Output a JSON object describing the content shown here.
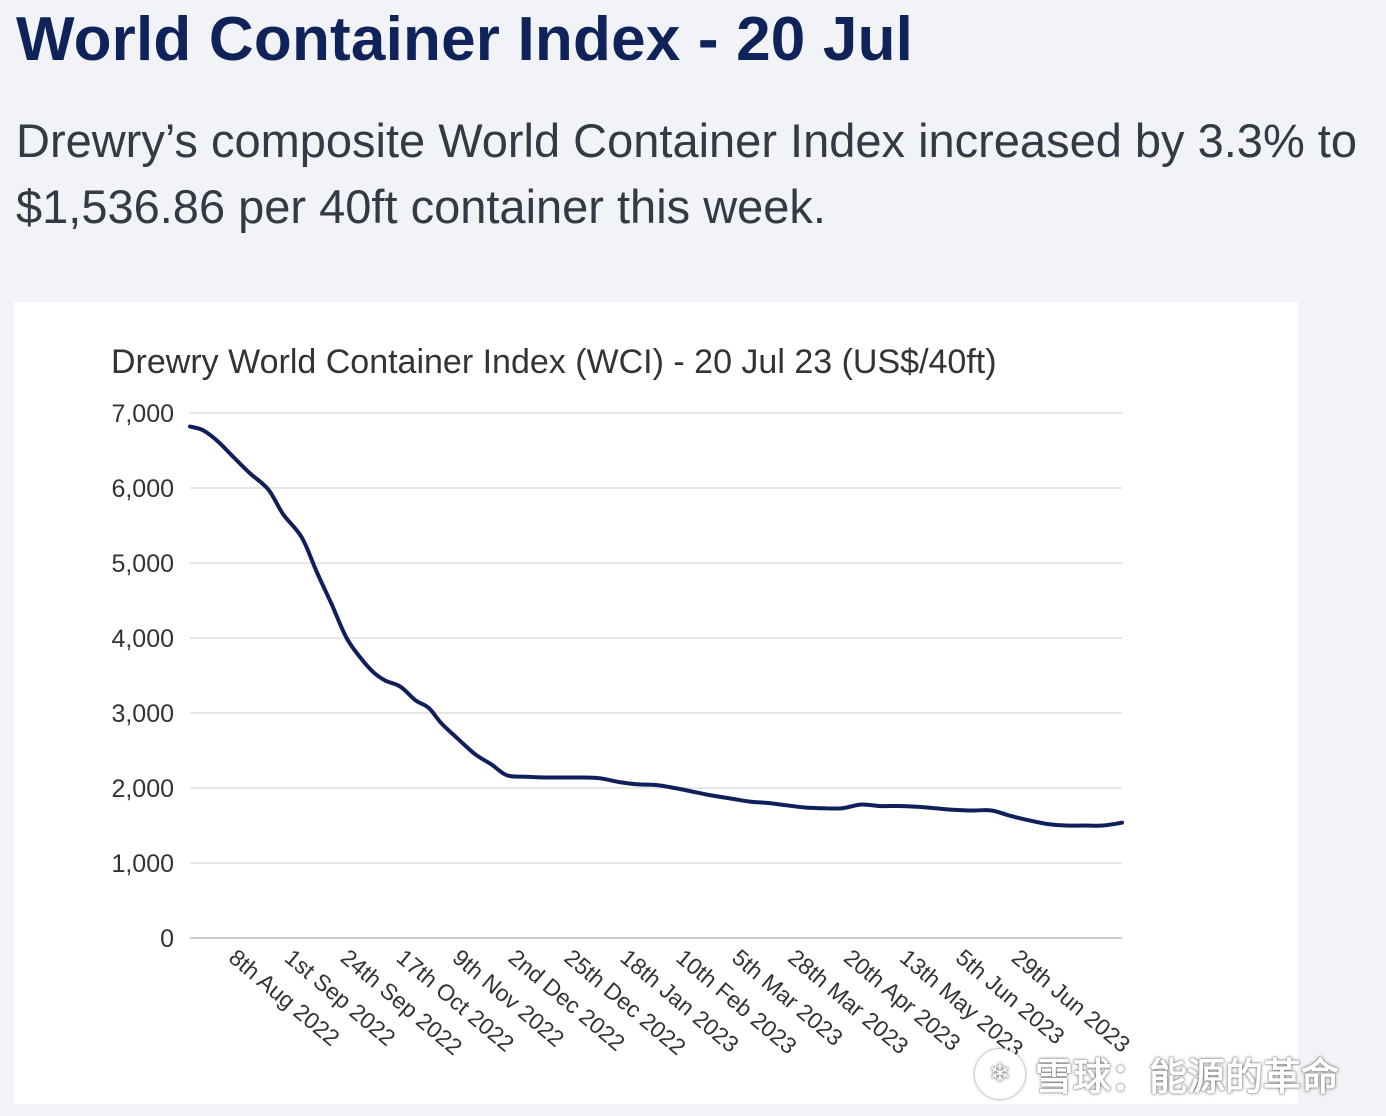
{
  "header": {
    "title": "World Container Index - 20 Jul",
    "summary": "Drewry’s composite World Container Index increased by 3.3% to $1,536.86 per 40ft container this week."
  },
  "watermark": {
    "logo_icon": "snowball-logo-icon",
    "text": "雪球：能源的革命"
  },
  "colors": {
    "line": "#0f1f5c",
    "grid": "#e6e6e6",
    "title": "#0f2259"
  },
  "chart_data": {
    "type": "line",
    "title": "Drewry World Container Index (WCI) - 20 Jul 23 (US$/40ft)",
    "xlabel": "",
    "ylabel": "",
    "ylim": [
      0,
      7000
    ],
    "yticks": [
      0,
      1000,
      2000,
      3000,
      4000,
      5000,
      6000,
      7000
    ],
    "ytick_labels": [
      "0",
      "1,000",
      "2,000",
      "3,000",
      "4,000",
      "5,000",
      "6,000",
      "7,000"
    ],
    "grid": true,
    "x_range": [
      0,
      50
    ],
    "xtick_positions": [
      2,
      5,
      8,
      11,
      14,
      17,
      20,
      23,
      26,
      29,
      32,
      35,
      38,
      41,
      44,
      47
    ],
    "xtick_labels": [
      "8th Aug 2022",
      "1st Sep 2022",
      "24th Sep 2022",
      "17th Oct 2022",
      "9th Nov 2022",
      "2nd Dec 2022",
      "25th Dec 2022",
      "18th Jan 2023",
      "10th Feb 2023",
      "5th Mar 2023",
      "28th Mar 2023",
      "20th Apr 2023",
      "13th May 2023",
      "5th Jun 2023",
      "29th Jun 2023",
      ""
    ],
    "series": [
      {
        "name": "WCI",
        "x": [
          0,
          0.7,
          1.5,
          2.3,
          3.2,
          4.2,
          5.0,
          6.0,
          6.8,
          7.6,
          8.4,
          9.2,
          9.9,
          10.5,
          11.3,
          12.1,
          12.8,
          13.5,
          14.4,
          15.3,
          16.2,
          17.0,
          18.0,
          19.0,
          20.0,
          21.0,
          22.0,
          23.0,
          24.0,
          25.0,
          26.0,
          27.0,
          28.0,
          29.0,
          30.0,
          31.0,
          32.0,
          33.0,
          34.0,
          35.0,
          36.0,
          37.0,
          38.0,
          39.0,
          40.0,
          41.0,
          42.0,
          43.0,
          44.0,
          45.0,
          46.0,
          47.0,
          48.0,
          49.0,
          50.0
        ],
        "values": [
          6820,
          6770,
          6620,
          6420,
          6200,
          5980,
          5650,
          5340,
          4880,
          4450,
          4000,
          3720,
          3530,
          3430,
          3350,
          3170,
          3070,
          2860,
          2650,
          2450,
          2310,
          2170,
          2150,
          2140,
          2140,
          2140,
          2130,
          2080,
          2050,
          2040,
          2000,
          1950,
          1900,
          1860,
          1820,
          1800,
          1770,
          1740,
          1730,
          1730,
          1780,
          1760,
          1760,
          1750,
          1730,
          1710,
          1700,
          1700,
          1630,
          1570,
          1520,
          1500,
          1500,
          1500,
          1537
        ]
      }
    ]
  }
}
